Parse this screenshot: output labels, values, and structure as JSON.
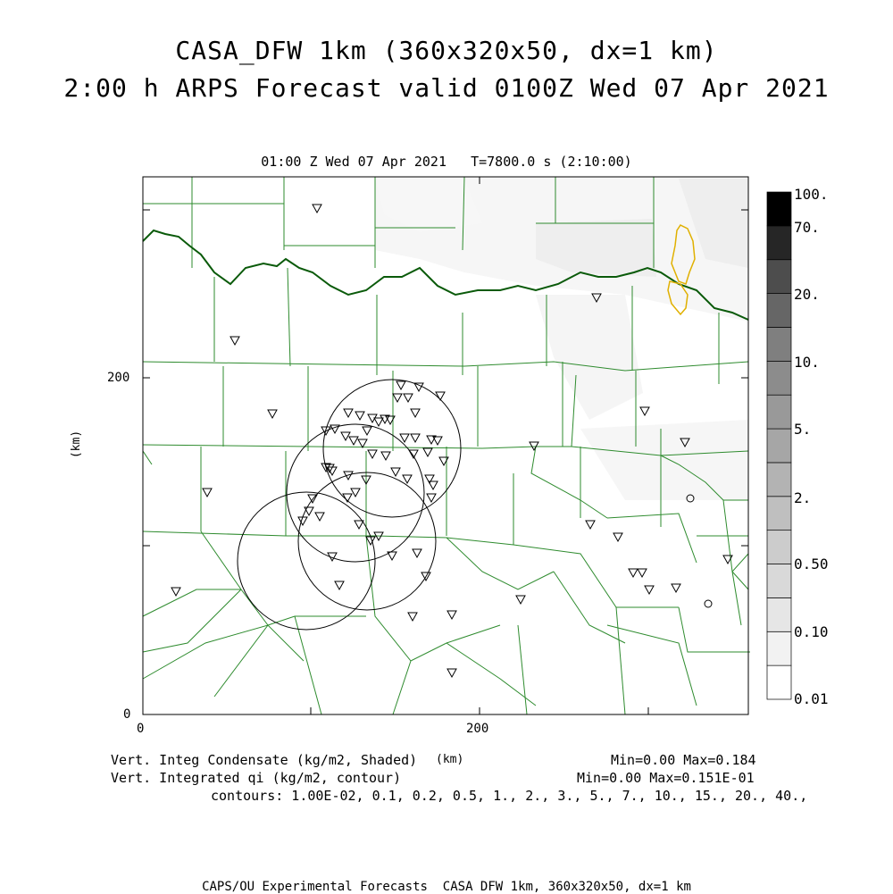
{
  "title_line1": "CASA_DFW 1km (360x320x50, dx=1 km)",
  "title_line2": "2:00 h ARPS Forecast valid 0100Z Wed 07 Apr 2021",
  "subtitle": "01:00 Z Wed 07 Apr 2021   T=7800.0 s (2:10:00)",
  "axes": {
    "x_ticks": [
      "0",
      "200"
    ],
    "y_ticks": [
      "0",
      "200"
    ],
    "y_label": "(km)",
    "x_unit": "(km)"
  },
  "colorbar": {
    "labels": [
      "100.",
      "70.",
      "20.",
      "10.",
      "5.",
      "2.",
      "0.50",
      "0.10",
      "0.01"
    ],
    "colors": [
      "#ffffff",
      "#f2f2f2",
      "#e6e6e6",
      "#d9d9d9",
      "#cccccc",
      "#bfbfbf",
      "#b3b3b3",
      "#a6a6a6",
      "#999999",
      "#8c8c8c",
      "#7f7f7f",
      "#666666",
      "#4d4d4d",
      "#262626",
      "#000000"
    ]
  },
  "colors": {
    "county_lines": "#2e8b2e",
    "state_border": "#0a5a0a",
    "qi_contour": "#e0b000",
    "radar_rings": "#000000"
  },
  "footer": {
    "line1_left": "Vert. Integ Condensate (kg/m2, Shaded)",
    "line1_right": "Min=0.00 Max=0.184",
    "line2_left": "Vert. Integrated qi (kg/m2, contour)",
    "line2_right": "Min=0.00 Max=0.151E-01",
    "line3": "contours: 1.00E-02, 0.1, 0.2, 0.5, 1., 2., 3., 5., 7., 10., 15., 20., 40.,",
    "credit": "CAPS/OU Experimental Forecasts  CASA DFW 1km, 360x320x50, dx=1 km"
  }
}
